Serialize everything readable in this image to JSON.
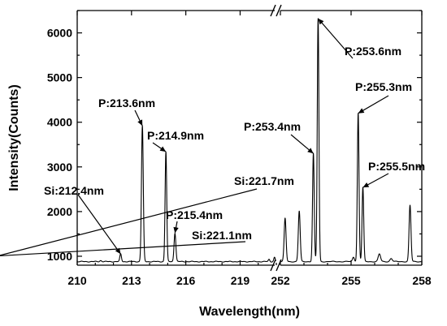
{
  "chart_data": {
    "type": "line",
    "xlabel": "Wavelength(nm)",
    "ylabel": "Intensity(Counts)",
    "ylim": [
      800,
      6500
    ],
    "axis_break": true,
    "x_segments": [
      {
        "range": [
          210,
          221
        ],
        "ticks": [
          "210",
          "213",
          "216",
          "219"
        ],
        "tick_values": [
          210,
          213,
          216,
          219
        ]
      },
      {
        "range": [
          252,
          258
        ],
        "ticks": [
          "252",
          "255",
          "258"
        ],
        "tick_values": [
          252,
          255,
          258
        ]
      }
    ],
    "y_ticks": [
      "1000",
      "2000",
      "3000",
      "4000",
      "5000",
      "6000"
    ],
    "y_tick_values": [
      1000,
      2000,
      3000,
      4000,
      5000,
      6000
    ],
    "baseline": 880,
    "peaks": [
      {
        "x": 211.3,
        "y": 905,
        "w": 0.05
      },
      {
        "x": 212.4,
        "y": 1050,
        "w": 0.045
      },
      {
        "x": 213.6,
        "y": 3920,
        "w": 0.05
      },
      {
        "x": 214.9,
        "y": 3340,
        "w": 0.045
      },
      {
        "x": 215.4,
        "y": 1520,
        "w": 0.05
      },
      {
        "x": 220.6,
        "y": 930,
        "w": 0.04
      },
      {
        "x": 220.9,
        "y": 980,
        "w": 0.04
      },
      {
        "x": 221.1,
        "y": 1010,
        "w": 0.04
      },
      {
        "x": 221.7,
        "y": 1020,
        "w": 0.04
      },
      {
        "x": 252.2,
        "y": 1850,
        "w": 0.04
      },
      {
        "x": 252.8,
        "y": 2010,
        "w": 0.04
      },
      {
        "x": 253.4,
        "y": 3300,
        "w": 0.035
      },
      {
        "x": 253.6,
        "y": 6320,
        "w": 0.035
      },
      {
        "x": 255.1,
        "y": 980,
        "w": 0.04
      },
      {
        "x": 255.3,
        "y": 4200,
        "w": 0.035
      },
      {
        "x": 255.5,
        "y": 2540,
        "w": 0.035
      },
      {
        "x": 256.2,
        "y": 1050,
        "w": 0.05
      },
      {
        "x": 256.7,
        "y": 950,
        "w": 0.05
      },
      {
        "x": 257.5,
        "y": 2140,
        "w": 0.04
      }
    ],
    "annotations": [
      {
        "label": "Si:212.4nm",
        "x": 212.4,
        "y": 1050
      },
      {
        "label": "P:213.6nm",
        "x": 213.6,
        "y": 3920
      },
      {
        "label": "P:214.9nm",
        "x": 214.9,
        "y": 3340
      },
      {
        "label": "P:215.4nm",
        "x": 215.4,
        "y": 1520
      },
      {
        "label": "Si:221.1nm",
        "x": 221.1,
        "y": 1010
      },
      {
        "label": "Si:221.7nm",
        "x": 221.7,
        "y": 1020
      },
      {
        "label": "P:253.4nm",
        "x": 253.4,
        "y": 3300
      },
      {
        "label": "P:253.6nm",
        "x": 253.6,
        "y": 6320
      },
      {
        "label": "P:255.3nm",
        "x": 255.3,
        "y": 4200
      },
      {
        "label": "P:255.5nm",
        "x": 255.5,
        "y": 2540
      }
    ]
  }
}
